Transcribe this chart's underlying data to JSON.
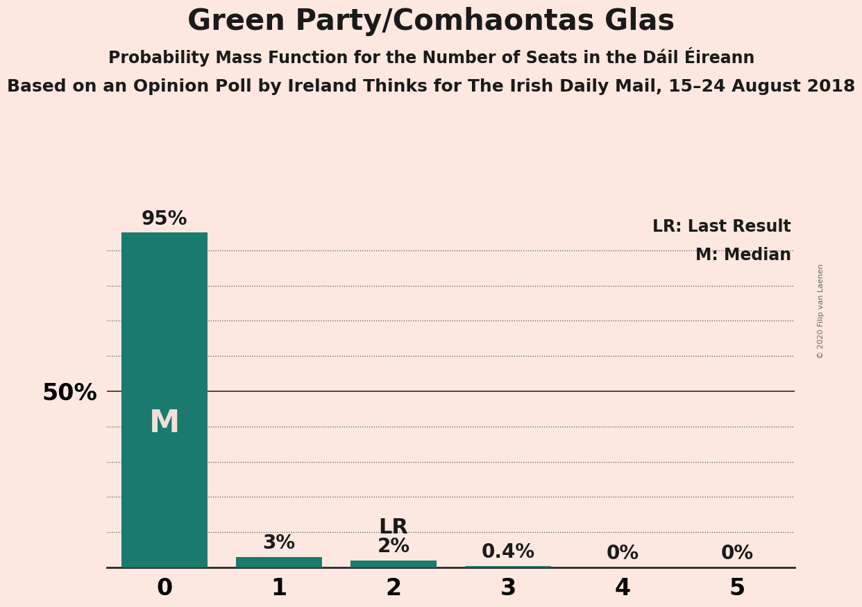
{
  "title": "Green Party/Comhaontas Glas",
  "subtitle1": "Probability Mass Function for the Number of Seats in the Dáil Éireann",
  "subtitle2": "Based on an Opinion Poll by Ireland Thinks for The Irish Daily Mail, 15–24 August 2018",
  "copyright": "© 2020 Filip van Laenen",
  "categories": [
    0,
    1,
    2,
    3,
    4,
    5
  ],
  "values": [
    0.95,
    0.03,
    0.02,
    0.004,
    0.0,
    0.0
  ],
  "bar_color": "#1a7a6e",
  "bg_color": "#fce8e0",
  "text_color": "#1a1a1a",
  "median": 0,
  "last_result": 2,
  "y_label_50": "50%",
  "ylim": [
    0,
    1.0
  ],
  "legend_lr": "LR: Last Result",
  "legend_m": "M: Median",
  "bar_labels": [
    "95%",
    "3%",
    "2%",
    "0.4%",
    "0%",
    "0%"
  ],
  "fifty_pct": 0.5,
  "grid_lines": [
    0.1,
    0.2,
    0.3,
    0.4,
    0.5,
    0.6,
    0.7,
    0.8,
    0.9
  ],
  "title_fontsize": 30,
  "subtitle1_fontsize": 17,
  "subtitle2_fontsize": 18,
  "bar_label_fontsize": 20,
  "axis_label_fontsize": 24,
  "tick_fontsize": 24,
  "legend_fontsize": 17,
  "copyright_fontsize": 8,
  "m_fontsize": 32,
  "lr_fontsize": 22
}
